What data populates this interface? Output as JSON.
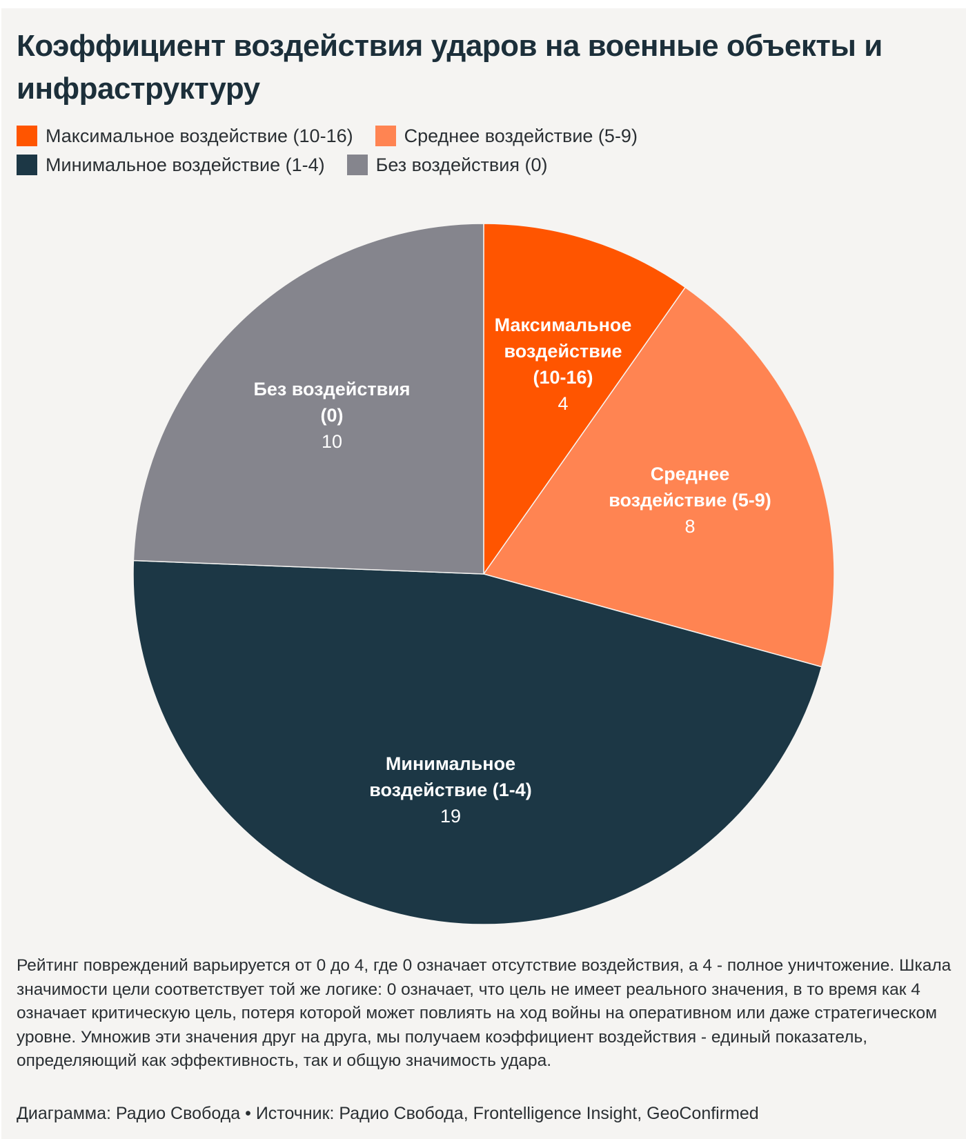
{
  "chart_data": {
    "type": "pie",
    "title": "Коэффициент воздействия ударов на военные объекты и инфраструктуру",
    "legend_position": "top-left",
    "slices": [
      {
        "name": "Максимальное воздействие (10-16)",
        "label_lines": [
          "Максимальное",
          "воздействие",
          "(10-16)"
        ],
        "value": 4,
        "color": "#ff5500"
      },
      {
        "name": "Среднее воздействие (5-9)",
        "label_lines": [
          "Среднее",
          "воздействие (5-9)"
        ],
        "value": 8,
        "color": "#ff8452"
      },
      {
        "name": "Минимальное воздействие (1-4)",
        "label_lines": [
          "Минимальное",
          "воздействие (1-4)"
        ],
        "value": 19,
        "color": "#1c3745"
      },
      {
        "name": "Без воздействия (0)",
        "label_lines": [
          "Без воздействия",
          "(0)"
        ],
        "value": 10,
        "color": "#85858d"
      }
    ]
  },
  "description": "Рейтинг повреждений варьируется от 0 до 4, где 0 означает отсутствие воздействия, а 4 - полное уничтожение. Шкала значимости цели соответствует той же логике: 0 означает, что цель не имеет реального значения, в то время как 4 означает критическую цель, потеря которой может повлиять на ход войны на оперативном или даже стратегическом уровне. Умножив эти значения друг на друга, мы получаем коэффициент воздействия - единый показатель, определяющий как эффективность, так и общую значимость удара.",
  "credit": "Диаграмма: Радио Свобода • Источник: Радио Свобода, Frontelligence Insight, GeoConfirmed"
}
